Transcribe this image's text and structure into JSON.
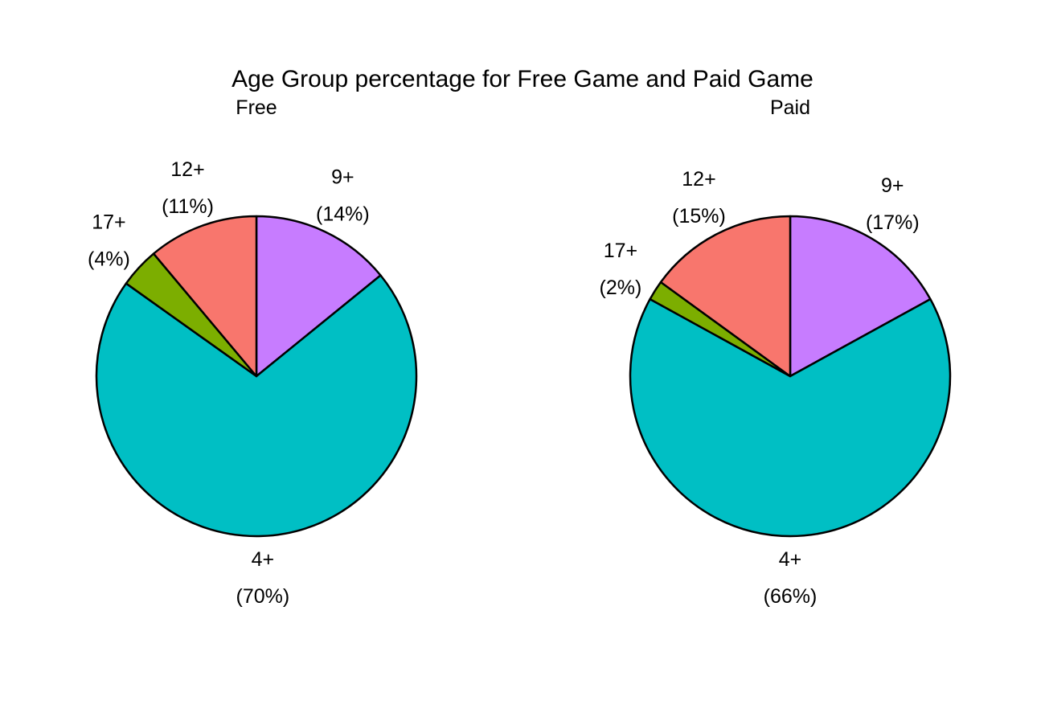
{
  "chart_data": {
    "type": "pie",
    "title": "Age Group percentage for Free Game and Paid Game",
    "colors": {
      "4+": "#00BFC4",
      "9+": "#C77CFF",
      "12+": "#F8766D",
      "17+": "#7CAE00"
    },
    "charts": [
      {
        "subtitle": "Free",
        "slices": [
          {
            "label": "9+",
            "value": 14,
            "pct_label": "(14%)"
          },
          {
            "label": "4+",
            "value": 70,
            "pct_label": "(70%)"
          },
          {
            "label": "17+",
            "value": 4,
            "pct_label": "(4%)"
          },
          {
            "label": "12+",
            "value": 11,
            "pct_label": "(11%)"
          }
        ]
      },
      {
        "subtitle": "Paid",
        "slices": [
          {
            "label": "9+",
            "value": 17,
            "pct_label": "(17%)"
          },
          {
            "label": "4+",
            "value": 66,
            "pct_label": "(66%)"
          },
          {
            "label": "17+",
            "value": 2,
            "pct_label": "(2%)"
          },
          {
            "label": "12+",
            "value": 15,
            "pct_label": "(15%)"
          }
        ]
      }
    ]
  }
}
